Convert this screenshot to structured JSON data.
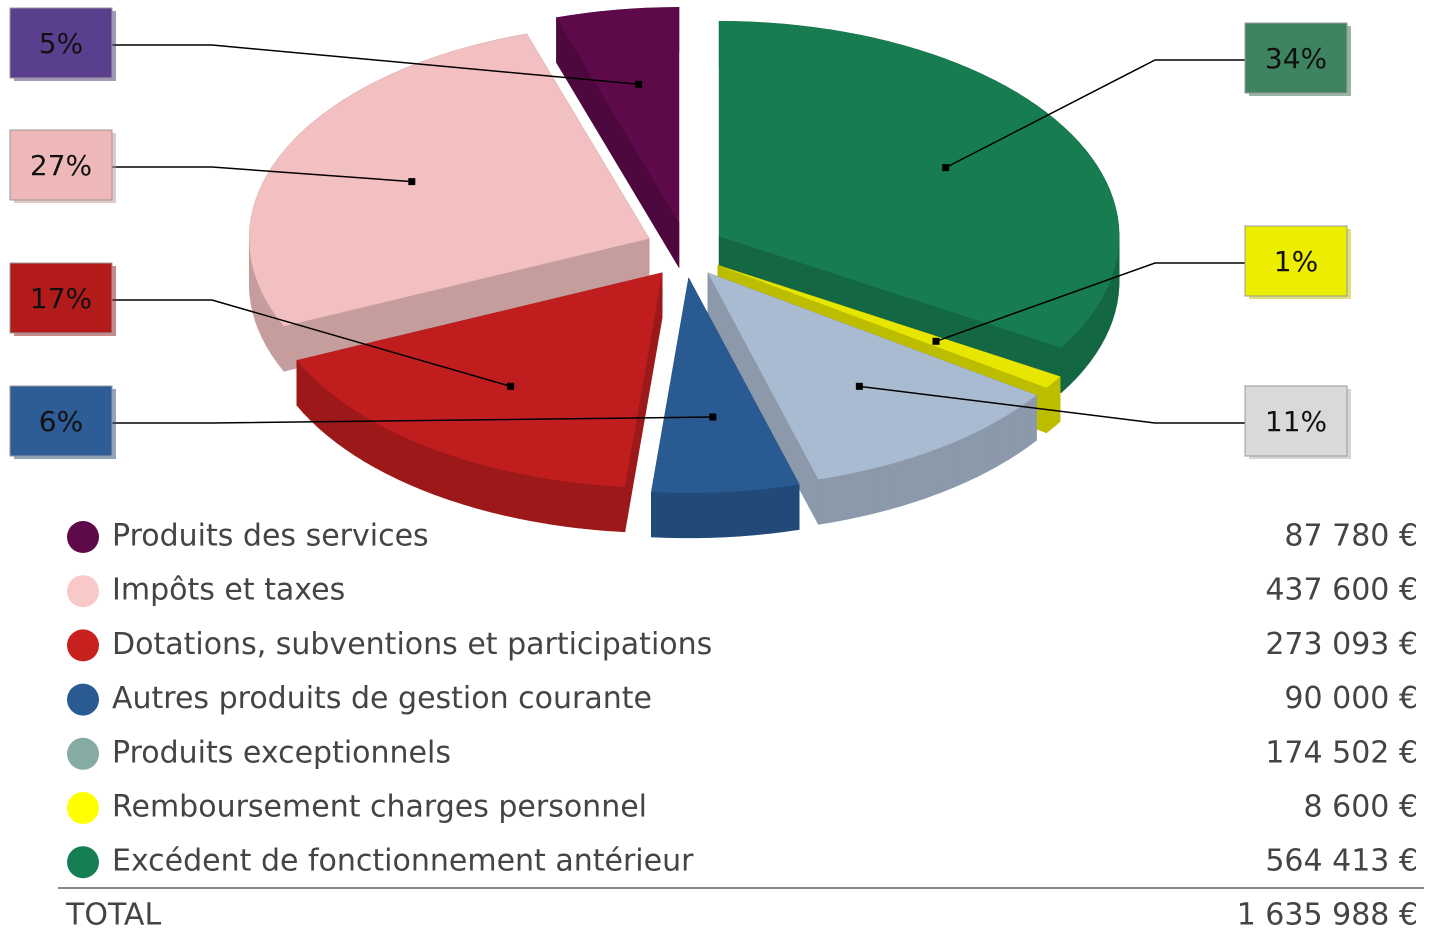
{
  "chart_data": {
    "type": "pie",
    "categories": [
      "Produits des services",
      "Impôts et taxes",
      "Dotations, subventions et participations",
      "Autres produits de gestion courante",
      "Produits exceptionnels",
      "Remboursement charges personnel",
      "Excédent de fonctionnement antérieur"
    ],
    "values": [
      5,
      27,
      17,
      6,
      11,
      1,
      34
    ],
    "value_labels": [
      "5%",
      "27%",
      "17%",
      "6%",
      "11%",
      "1%",
      "34%"
    ],
    "colors": [
      "#5e0a4a",
      "#f2c0c0",
      "#c01e1e",
      "#2a5a92",
      "#a9bbd1",
      "#e6e600",
      "#177d50"
    ],
    "label_colors": [
      "#5b3f8f",
      "#efb8b8",
      "#b31b1b",
      "#2e5c96",
      "#d9d9d9",
      "#eded00",
      "#3f8460"
    ],
    "legend_colors": [
      "#5e0a4a",
      "#f9c9c9",
      "#c8201f",
      "#2a5a92",
      "#86aba2",
      "#ffff00",
      "#167e53"
    ]
  },
  "table": {
    "amounts": [
      "87 780 €",
      "437 600 €",
      "273 093 €",
      "90 000 €",
      "174 502 €",
      "8 600 €",
      "564 413 €"
    ],
    "total_label": "TOTAL",
    "total": "1 635 988 €"
  }
}
